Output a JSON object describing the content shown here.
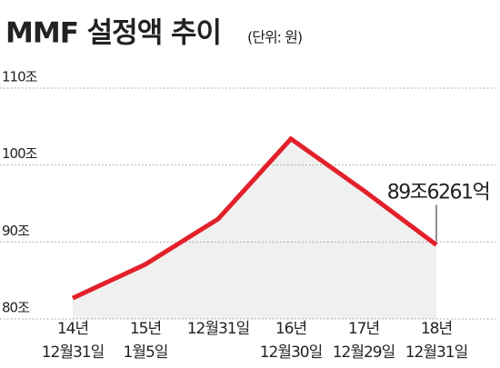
{
  "chart_data": {
    "type": "line",
    "title": "MMF 설정액 추이",
    "subtitle": "(단위: 원)",
    "categories": [
      [
        "14년",
        "12월31일"
      ],
      [
        "15년",
        "1월5일"
      ],
      [
        "12월31일"
      ],
      [
        "16년",
        "12월30일"
      ],
      [
        "17년",
        "12월29일"
      ],
      [
        "18년",
        "12월31일"
      ]
    ],
    "values": [
      82.7,
      87.1,
      93.0,
      103.4,
      96.7,
      89.6261
    ],
    "value_labels": [
      null,
      null,
      null,
      null,
      null,
      "89조6261억"
    ],
    "color": "#e3202a",
    "ylim": [
      80,
      110
    ],
    "yticks": [
      {
        "value": 80,
        "label": "80조"
      },
      {
        "value": 90,
        "label": "90조"
      },
      {
        "value": 100,
        "label": "100조"
      },
      {
        "value": 110,
        "label": "110조"
      }
    ],
    "grid": true
  }
}
